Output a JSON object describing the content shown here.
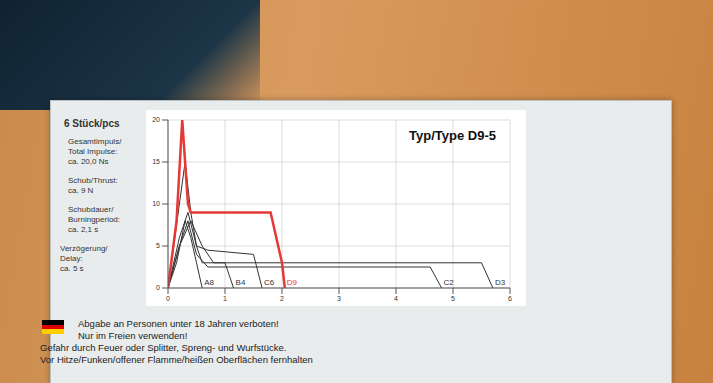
{
  "chart_data": {
    "type": "line",
    "title": "Typ/Type D9-5",
    "xlim": [
      0,
      6
    ],
    "xticks": [
      0,
      1,
      2,
      3,
      4,
      5,
      6
    ],
    "ylim": [
      0,
      20
    ],
    "yticks": [
      0,
      5,
      10,
      15,
      20
    ],
    "grid": true,
    "series": [
      {
        "name": "A8",
        "color": "#333333",
        "x": [
          0,
          0.15,
          0.3,
          0.4,
          0.5,
          0.6
        ],
        "values": [
          0,
          3,
          8,
          6,
          3,
          0
        ]
      },
      {
        "name": "B4",
        "color": "#333333",
        "x": [
          0,
          0.2,
          0.35,
          0.5,
          0.6,
          1.0,
          1.15
        ],
        "values": [
          0,
          6,
          9,
          5,
          3,
          3,
          0
        ]
      },
      {
        "name": "C6",
        "color": "#333333",
        "x": [
          0,
          0.2,
          0.3,
          0.4,
          0.5,
          0.7,
          1.5,
          1.65
        ],
        "values": [
          0,
          10,
          15,
          9,
          5,
          4.5,
          4,
          0
        ]
      },
      {
        "name": "C2",
        "color": "#333333",
        "x": [
          0,
          0.2,
          0.35,
          0.5,
          0.7,
          4.6,
          4.8
        ],
        "values": [
          0,
          5,
          8,
          4,
          2.5,
          2.5,
          0
        ]
      },
      {
        "name": "D3",
        "color": "#333333",
        "x": [
          0,
          0.2,
          0.4,
          0.6,
          0.8,
          5.5,
          5.7
        ],
        "values": [
          0,
          5,
          8,
          5,
          3,
          3,
          0
        ]
      },
      {
        "name": "D9",
        "color": "#e53935",
        "x": [
          0,
          0.15,
          0.25,
          0.35,
          0.4,
          1.8,
          2.0,
          2.05
        ],
        "values": [
          0,
          8,
          20,
          10,
          9,
          9,
          3,
          0
        ]
      }
    ]
  },
  "count": "6 Stück/pcs",
  "specs": [
    {
      "label": [
        "Gesamtimpuls/",
        "Total Impulse:"
      ],
      "value": "ca. 20,0 Ns"
    },
    {
      "label": [
        "Schub/Thrust:"
      ],
      "value": "ca. 9 N"
    },
    {
      "label": [
        "Schubdauer/",
        "Burningperiod:"
      ],
      "value": "ca. 2,1 s"
    },
    {
      "label": [
        "Verzögerung/",
        "Delay:"
      ],
      "value": "ca. 5 s"
    }
  ],
  "warnings": [
    "Abgabe an Personen unter 18 Jahren verboten!",
    "Nur im Freien verwenden!",
    "Gefahr durch Feuer oder Splitter, Spreng- und Wurfstücke.",
    "Vor Hitze/Funken/offener Flamme/heißen Oberflächen fernhalten"
  ]
}
